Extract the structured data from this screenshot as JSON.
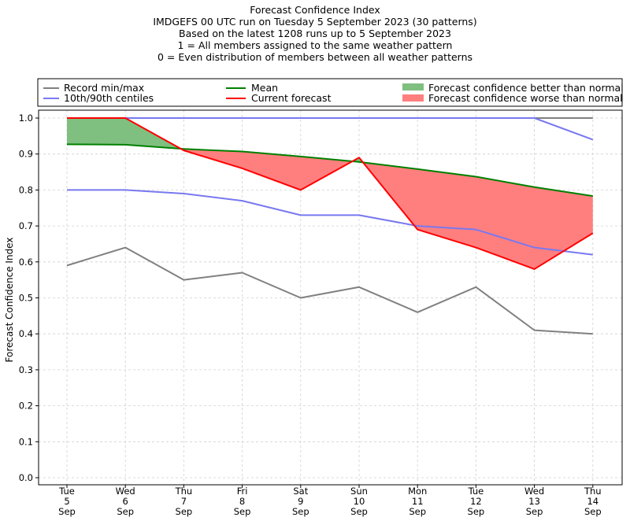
{
  "titles": {
    "line1": "Forecast Confidence Index",
    "line2": "IMDGEFS 00 UTC run on Tuesday 5 September 2023 (30 patterns)",
    "line3": "Based on the latest 1208 runs up to 5 September 2023",
    "line4": "1 = All members assigned to the same weather pattern",
    "line5": "0 = Even distribution of members between all weather patterns"
  },
  "legend": {
    "record": "Record min/max",
    "centiles": "10th/90th centiles",
    "mean": "Mean",
    "current": "Current forecast",
    "better": "Forecast confidence better than normal",
    "worse": "Forecast confidence worse than normal"
  },
  "colors": {
    "record": "#808080",
    "centiles": "#7878f0",
    "mean": "#008000",
    "current": "#ff0000",
    "better": "#7fbf7f",
    "worse": "#ff7f7f",
    "grid": "#d0d0d0"
  },
  "chart_data": {
    "type": "line",
    "ylabel": "Forecast Confidence Index",
    "ylim": [
      0.0,
      1.0
    ],
    "yticks": [
      "0.0",
      "0.1",
      "0.2",
      "0.3",
      "0.4",
      "0.5",
      "0.6",
      "0.7",
      "0.8",
      "0.9",
      "1.0"
    ],
    "grid": true,
    "legend_position": "top",
    "categories": [
      [
        "Tue",
        "5",
        "Sep"
      ],
      [
        "Wed",
        "6",
        "Sep"
      ],
      [
        "Thu",
        "7",
        "Sep"
      ],
      [
        "Fri",
        "8",
        "Sep"
      ],
      [
        "Sat",
        "9",
        "Sep"
      ],
      [
        "Sun",
        "10",
        "Sep"
      ],
      [
        "Mon",
        "11",
        "Sep"
      ],
      [
        "Tue",
        "12",
        "Sep"
      ],
      [
        "Wed",
        "13",
        "Sep"
      ],
      [
        "Thu",
        "14",
        "Sep"
      ]
    ],
    "series": [
      {
        "key": "record_max",
        "name": "Record min/max",
        "values": [
          1.0,
          1.0,
          1.0,
          1.0,
          1.0,
          1.0,
          1.0,
          1.0,
          1.0,
          1.0
        ]
      },
      {
        "key": "record_min",
        "name": "Record min/max",
        "values": [
          0.59,
          0.64,
          0.55,
          0.57,
          0.5,
          0.53,
          0.46,
          0.53,
          0.41,
          0.4
        ]
      },
      {
        "key": "p90",
        "name": "10th/90th centiles",
        "values": [
          1.0,
          1.0,
          1.0,
          1.0,
          1.0,
          1.0,
          1.0,
          1.0,
          1.0,
          0.94
        ]
      },
      {
        "key": "p10",
        "name": "10th/90th centiles",
        "values": [
          0.8,
          0.8,
          0.79,
          0.77,
          0.73,
          0.73,
          0.7,
          0.69,
          0.64,
          0.62
        ]
      },
      {
        "key": "mean",
        "name": "Mean",
        "values": [
          0.927,
          0.926,
          0.914,
          0.907,
          0.893,
          0.878,
          0.858,
          0.837,
          0.808,
          0.783
        ]
      },
      {
        "key": "current",
        "name": "Current forecast",
        "values": [
          1.0,
          1.0,
          0.91,
          0.86,
          0.8,
          0.89,
          0.69,
          0.64,
          0.58,
          0.68
        ]
      }
    ]
  }
}
